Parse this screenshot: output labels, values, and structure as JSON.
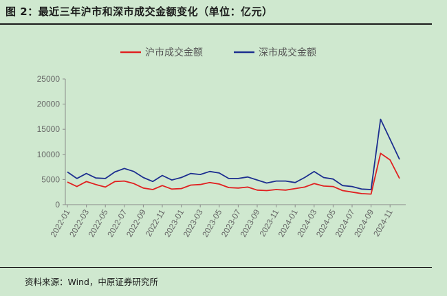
{
  "figure": {
    "title": "图 2：最近三年沪市和深市成交金额变化（单位：亿元）",
    "source": "资料来源：Wind，中原证券研究所"
  },
  "chart_data": {
    "type": "line",
    "title": "",
    "xlabel": "",
    "ylabel": "",
    "ylim": [
      0,
      25000
    ],
    "yticks": [
      0,
      5000,
      10000,
      15000,
      20000,
      25000
    ],
    "xticks": [
      "2022-01",
      "2022-03",
      "2022-05",
      "2022-07",
      "2022-09",
      "2022-11",
      "2023-01",
      "2023-03",
      "2023-05",
      "2023-07",
      "2023-09",
      "2023-11",
      "2024-01",
      "2024-03",
      "2024-05",
      "2024-07",
      "2024-09",
      "2024-11"
    ],
    "grid": false,
    "legend": "top-center",
    "x_dates": [
      "2022-01",
      "2022-02",
      "2022-03",
      "2022-04",
      "2022-05",
      "2022-06",
      "2022-07",
      "2022-08",
      "2022-09",
      "2022-10",
      "2022-11",
      "2022-12",
      "2023-01",
      "2023-02",
      "2023-03",
      "2023-04",
      "2023-05",
      "2023-06",
      "2023-07",
      "2023-08",
      "2023-09",
      "2023-10",
      "2023-11",
      "2023-12",
      "2024-01",
      "2024-02",
      "2024-03",
      "2024-04",
      "2024-05",
      "2024-06",
      "2024-07",
      "2024-08",
      "2024-09",
      "2024-10",
      "2024-11",
      "2024-12"
    ],
    "series": [
      {
        "name": "沪市成交金额",
        "color": "#e02020",
        "values": [
          4500,
          3600,
          4600,
          4000,
          3500,
          4600,
          4700,
          4200,
          3300,
          3000,
          3800,
          3100,
          3200,
          3900,
          4000,
          4400,
          4100,
          3400,
          3300,
          3500,
          2900,
          2800,
          3000,
          2900,
          3200,
          3500,
          4200,
          3700,
          3600,
          2800,
          2500,
          2200,
          2100,
          10200,
          8900,
          5200
        ]
      },
      {
        "name": "深市成交金额",
        "color": "#1c2e8f",
        "values": [
          6500,
          5200,
          6200,
          5300,
          5200,
          6500,
          7200,
          6600,
          5400,
          4600,
          5800,
          4900,
          5400,
          6200,
          6000,
          6600,
          6300,
          5200,
          5200,
          5500,
          4900,
          4300,
          4700,
          4700,
          4400,
          5400,
          6600,
          5400,
          5100,
          3800,
          3600,
          3100,
          3000,
          17000,
          13000,
          9000
        ]
      }
    ]
  }
}
